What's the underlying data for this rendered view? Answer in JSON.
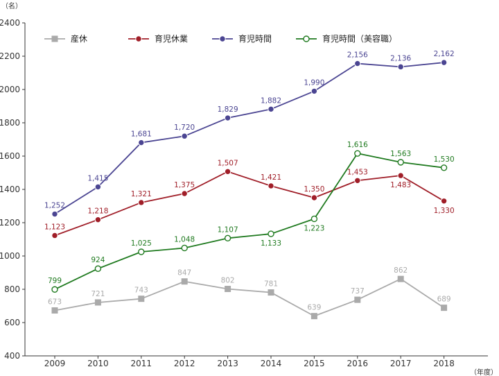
{
  "chart_data": {
    "type": "line",
    "title": "",
    "xlabel": "",
    "ylabel": "",
    "y_unit": "（名）",
    "x_unit": "（年度）",
    "x": [
      "2009",
      "2010",
      "2011",
      "2012",
      "2013",
      "2014",
      "2015",
      "2016",
      "2017",
      "2018"
    ],
    "ylim": [
      400,
      2400
    ],
    "yticks": [
      "400",
      "600",
      "800",
      "1000",
      "1200",
      "1400",
      "1600",
      "1800",
      "2000",
      "2200",
      "2400"
    ],
    "grid": false,
    "legend_position": "top-left",
    "series": [
      {
        "name": "産休",
        "color": "#aaaaaa",
        "marker": "square",
        "values": [
          673,
          721,
          743,
          847,
          802,
          781,
          639,
          737,
          862,
          689
        ],
        "labels": [
          "673",
          "721",
          "743",
          "847",
          "802",
          "781",
          "639",
          "737",
          "862",
          "689"
        ],
        "label_side": [
          "above",
          "above",
          "above",
          "above",
          "above",
          "above",
          "above",
          "above",
          "above",
          "above"
        ]
      },
      {
        "name": "育児休業",
        "color": "#a01e28",
        "marker": "circle-filled",
        "values": [
          1123,
          1218,
          1321,
          1375,
          1507,
          1421,
          1350,
          1453,
          1483,
          1330
        ],
        "labels": [
          "1,123",
          "1,218",
          "1,321",
          "1,375",
          "1,507",
          "1,421",
          "1,350",
          "1,453",
          "1,483",
          "1,330"
        ],
        "label_side": [
          "above",
          "above",
          "above",
          "above",
          "above",
          "above",
          "above",
          "above",
          "below",
          "below"
        ]
      },
      {
        "name": "育児時間",
        "color": "#4b4592",
        "marker": "circle-filled",
        "values": [
          1252,
          1415,
          1681,
          1720,
          1829,
          1882,
          1990,
          2156,
          2136,
          2162
        ],
        "labels": [
          "1,252",
          "1,415",
          "1,681",
          "1,720",
          "1,829",
          "1,882",
          "1,990",
          "2,156",
          "2,136",
          "2,162"
        ],
        "label_side": [
          "above",
          "above",
          "above",
          "above",
          "above",
          "above",
          "above",
          "above",
          "above",
          "above"
        ]
      },
      {
        "name": "育児時間（美容職）",
        "color": "#1f7a1f",
        "marker": "circle-open",
        "values": [
          799,
          924,
          1025,
          1048,
          1107,
          1133,
          1223,
          1616,
          1563,
          1530
        ],
        "labels": [
          "799",
          "924",
          "1,025",
          "1,048",
          "1,107",
          "1,133",
          "1,223",
          "1,616",
          "1,563",
          "1,530"
        ],
        "label_side": [
          "above",
          "above",
          "above",
          "above",
          "above",
          "below",
          "below",
          "above",
          "above",
          "above"
        ]
      }
    ]
  }
}
